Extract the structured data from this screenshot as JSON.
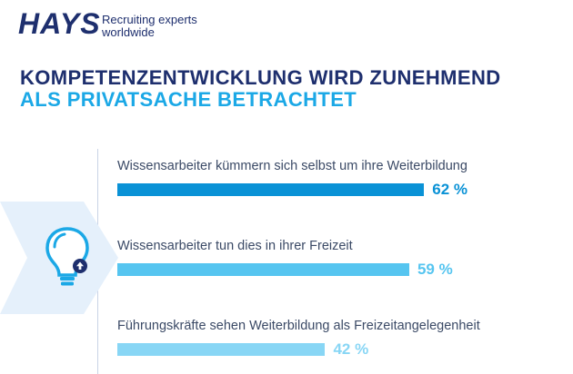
{
  "brand": {
    "name": "HAYS",
    "tagline_1": "Recruiting experts",
    "tagline_2": "worldwide"
  },
  "title": {
    "line1": "KOMPETENZENTWICKLUNG WIRD ZUNEHMEND",
    "line2": "ALS PRIVATSACHE BETRACHTET"
  },
  "icons": {
    "hexagon": "hexagon-background-icon",
    "bulb": "lightbulb-up-arrow-icon"
  },
  "colors": {
    "navy": "#1e2f6e",
    "accent": "#1ba8e6",
    "bar_dark": "#0a92d6",
    "bar_light": "#56c5f0",
    "bar_lighter": "#88d6f5"
  },
  "chart_data": {
    "type": "bar",
    "orientation": "horizontal",
    "categories": [
      "Wissensarbeiter kümmern sich selbst um ihre Weiterbildung",
      "Wissensarbeiter tun dies in ihrer Freizeit",
      "Führungskräfte sehen Weiterbildung als Freizeitangelegenheit"
    ],
    "values": [
      62,
      59,
      42
    ],
    "value_labels": [
      "62 %",
      "59 %",
      "42 %"
    ],
    "unit": "%",
    "xlim": [
      0,
      100
    ],
    "grid": false,
    "legend": "none"
  }
}
